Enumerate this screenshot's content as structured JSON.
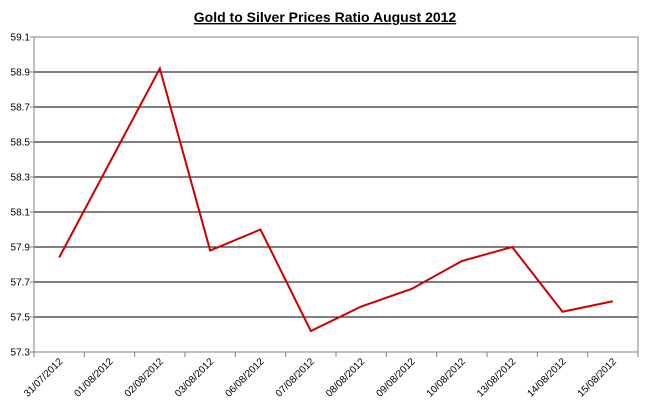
{
  "chart_data": {
    "type": "line",
    "title": "Gold to Silver Prices Ratio  August  2012",
    "xlabel": "",
    "ylabel": "",
    "categories": [
      "31/07/2012",
      "01/08/2012",
      "02/08/2012",
      "03/08/2012",
      "06/08/2012",
      "07/08/2012",
      "08/08/2012",
      "09/08/2012",
      "10/08/2012",
      "13/08/2012",
      "14/08/2012",
      "15/08/2012"
    ],
    "values": [
      57.84,
      58.38,
      58.92,
      57.88,
      58.0,
      57.42,
      57.56,
      57.66,
      57.82,
      57.9,
      57.53,
      57.59
    ],
    "ylim": [
      57.3,
      59.1
    ],
    "yticks": [
      "57.3",
      "57.5",
      "57.7",
      "57.9",
      "58.1",
      "58.3",
      "58.5",
      "58.7",
      "58.9",
      "59.1"
    ],
    "grid": "horizontal",
    "legend": "none",
    "colors": {
      "line": "#cc0000",
      "grid": "#000000",
      "axis": "#808080"
    }
  }
}
